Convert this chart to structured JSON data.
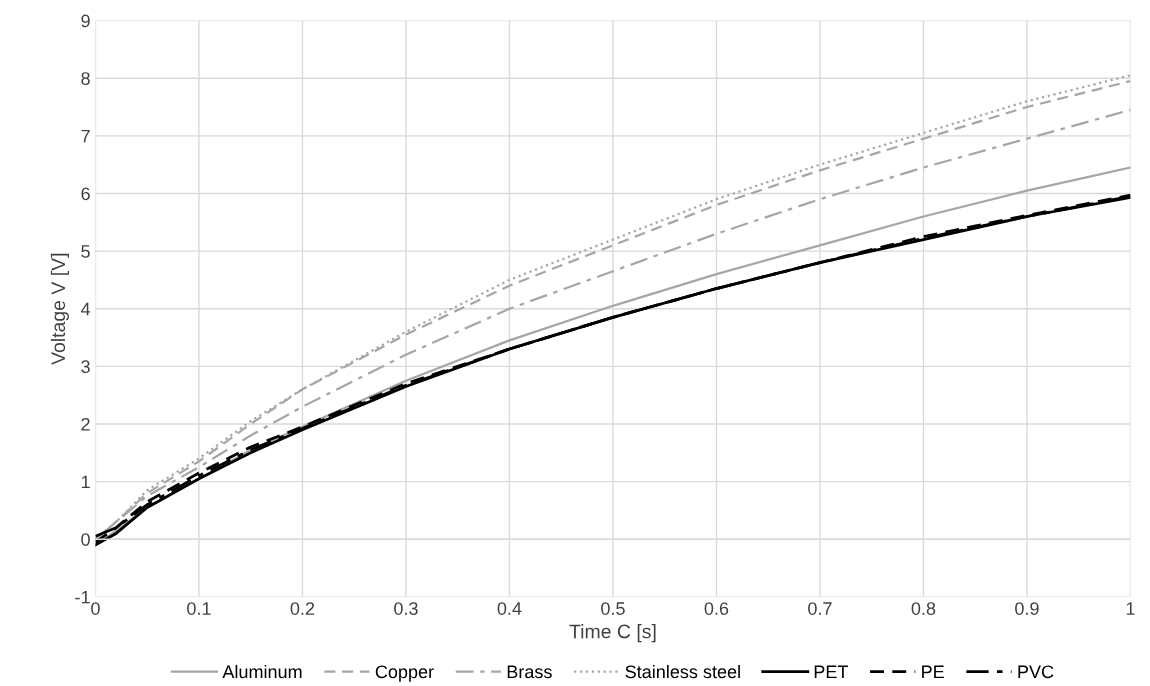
{
  "chart_data": {
    "type": "line",
    "xlabel": "Time C [s]",
    "ylabel": "Voltage V [V]",
    "x": [
      0,
      0.02,
      0.05,
      0.1,
      0.15,
      0.2,
      0.3,
      0.4,
      0.5,
      0.6,
      0.7,
      0.8,
      0.9,
      1
    ],
    "xlim": [
      0,
      1
    ],
    "xticks": [
      0,
      0.1,
      0.2,
      0.3,
      0.4,
      0.5,
      0.6,
      0.7,
      0.8,
      0.9,
      1
    ],
    "ylim": [
      -1,
      9
    ],
    "yticks": [
      -1,
      0,
      1,
      2,
      3,
      4,
      5,
      6,
      7,
      8,
      9
    ],
    "grid": true,
    "legend": "bottom",
    "marker": "none",
    "series": [
      {
        "name": "Aluminum",
        "color": "#a6a6a6",
        "line_style": "solid",
        "values": [
          -0.1,
          0.15,
          0.55,
          1.05,
          1.55,
          1.95,
          2.75,
          3.45,
          4.05,
          4.6,
          5.1,
          5.6,
          6.05,
          6.45
        ]
      },
      {
        "name": "Copper",
        "color": "#a6a6a6",
        "line_style": "dashed",
        "values": [
          0,
          0.3,
          0.8,
          1.35,
          2.0,
          2.6,
          3.55,
          4.4,
          5.1,
          5.8,
          6.4,
          6.95,
          7.5,
          7.95
        ]
      },
      {
        "name": "Brass",
        "color": "#a6a6a6",
        "line_style": "dashdot",
        "values": [
          0,
          0.3,
          0.75,
          1.25,
          1.8,
          2.3,
          3.2,
          4.0,
          4.65,
          5.3,
          5.9,
          6.45,
          6.95,
          7.45
        ]
      },
      {
        "name": "Stainless steel",
        "color": "#a6a6a6",
        "line_style": "dotted",
        "values": [
          0,
          0.3,
          0.85,
          1.4,
          2.05,
          2.6,
          3.6,
          4.5,
          5.2,
          5.9,
          6.5,
          7.05,
          7.6,
          8.05
        ]
      },
      {
        "name": "PET",
        "color": "#000000",
        "line_style": "solid",
        "values": [
          -0.1,
          0.1,
          0.55,
          1.05,
          1.5,
          1.9,
          2.65,
          3.3,
          3.85,
          4.35,
          4.8,
          5.2,
          5.6,
          5.93
        ]
      },
      {
        "name": "PE",
        "color": "#000000",
        "line_style": "dashed",
        "values": [
          -0.05,
          0.2,
          0.65,
          1.15,
          1.6,
          1.95,
          2.7,
          3.3,
          3.85,
          4.35,
          4.8,
          5.25,
          5.62,
          5.97
        ]
      },
      {
        "name": "PVC",
        "color": "#000000",
        "line_style": "dashdot",
        "values": [
          0.05,
          0.2,
          0.6,
          1.1,
          1.55,
          1.92,
          2.67,
          3.3,
          3.85,
          4.35,
          4.8,
          5.22,
          5.6,
          5.95
        ]
      }
    ]
  }
}
